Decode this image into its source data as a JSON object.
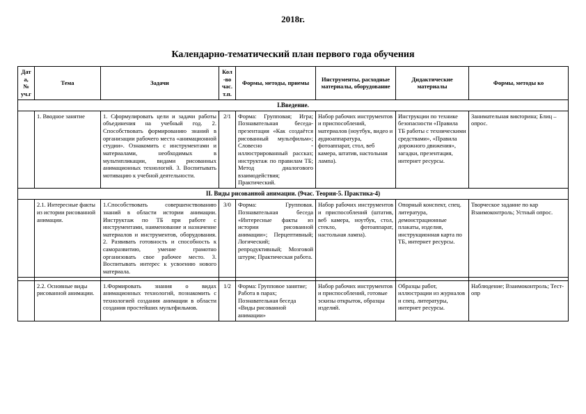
{
  "year": "2018г.",
  "title": "Календарно-тематический план первого года обучения",
  "headers": {
    "date": "Дата, № уч.г",
    "topic": "Тема",
    "tasks": "Задачи",
    "hours": "Кол-во час. т.п.",
    "forms": "Формы, методы, приемы",
    "tools": "Инструменты, расходные материалы, оборудование",
    "didactic": "Дидактические материалы",
    "control": "Формы, методы ко"
  },
  "section1": "I.Введение.",
  "row1": {
    "date": "",
    "topic": "1. Вводное занятие",
    "tasks": "1. Сформулировать цели и задачи работы объединения на учебный год. 2. Способствовать формированию знаний в организации рабочего места «анимационной студии». Ознакомить с инструментами и материалами, необходимых в мультипликации, видами рисованных анимационных технологий. 3. Воспитывать мотивацию к учебной деятельности.",
    "hours": "2/1",
    "forms": "Форма: Групповая; Игра; Познавательная беседа-презентация «Как создаётся рисованный мультфильм»; Словесно - иллюстрированный рассказ; инструктаж по правилам ТБ; Метод диалогового взаимодействия; Практический.",
    "tools": "Набор рабочих инструментов и приспособлений, материалов (ноутбук, видео и аудиоаппаратура, фотоаппарат, стол, веб камера, штатив, настольная лампа).",
    "didactic": "Инструкции по технике безопасности «Правила ТБ работы с техническими средствами», «Правила дорожного движения», загадки, презентация, интернет ресурсы.",
    "control": "Занимательная викторина; Блиц – опрос."
  },
  "section2": "II. Виды рисованной анимации. (9час. Теория-5. Практика-4)",
  "row2": {
    "date": "",
    "topic": "2.1. Интересные факты из истории рисованной анимации.",
    "tasks": "1.Способствовать совершенствованию знаний в области истории анимации. Инструктаж по ТБ при работе с инструментами, наименование и назначение материалов и инструментов, оборудования. 2. Развивать готовность и способность к саморазвитию, умение грамотно организовать свое рабочее место. 3. Воспитывать интерес к усвоению нового материала.",
    "hours": "3/0",
    "forms": "Форма: Групповая. Познавательная беседа «Интересные факты из истории рисованной анимации»; Перцептивный; Логический; репродуктивный; Мозговой штурм; Практическая работа.",
    "tools": "Набор рабочих инструментов и приспособлений (штатив, веб камера, ноутбук, стол, стекло, фотоаппарат, настольная лампа).",
    "didactic": "Опорный конспект, спец. литература, демонстрационные плакаты, изделия, инструкционная карта по ТБ, интернет ресурсы.",
    "control": "Творческое задание по кар Взаимоконтроль; Устный опрос."
  },
  "row3": {
    "date": "",
    "topic": "2.2. Основные виды рисованной анимации.",
    "tasks": "1.Формировать знания о видах анимационных технологий, познакомить с технологией создания анимации в области создания простейших мультфильмов.",
    "hours": "1/2",
    "forms": "Форма: Групповое занятие; Работа в парах; Познавательная беседа «Виды рисованной анимации»",
    "tools": "Набор рабочих инструментов и приспособлений, готовые эскизы открыток, образцы изделий.",
    "didactic": "Образцы работ, иллюстрации из журналов и спец. литературы, интернет ресурсы.",
    "control": "Наблюдение; Взаимоконтроль; Тест-опр"
  }
}
